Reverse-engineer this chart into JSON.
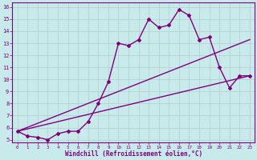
{
  "xlabel": "Windchill (Refroidissement éolien,°C)",
  "bg_color": "#c8eaea",
  "grid_color": "#b0cece",
  "line_color": "#800080",
  "xlim": [
    -0.5,
    23.5
  ],
  "ylim": [
    4.8,
    16.4
  ],
  "xticks": [
    0,
    1,
    2,
    3,
    4,
    5,
    6,
    7,
    8,
    9,
    10,
    11,
    12,
    13,
    14,
    15,
    16,
    17,
    18,
    19,
    20,
    21,
    22,
    23
  ],
  "yticks": [
    5,
    6,
    7,
    8,
    9,
    10,
    11,
    12,
    13,
    14,
    15,
    16
  ],
  "line1_x": [
    0,
    1,
    2,
    3,
    4,
    5,
    6,
    7,
    8,
    9,
    10,
    11,
    12,
    13,
    14,
    15,
    16,
    17,
    18,
    19,
    20,
    21,
    22,
    23
  ],
  "line1_y": [
    5.7,
    5.3,
    5.2,
    5.0,
    5.5,
    5.7,
    5.7,
    6.5,
    8.0,
    9.8,
    13.0,
    12.8,
    13.3,
    15.0,
    14.3,
    14.5,
    15.8,
    15.3,
    13.3,
    13.5,
    11.0,
    9.3,
    10.3,
    10.3
  ],
  "line2_x": [
    0,
    23
  ],
  "line2_y": [
    5.7,
    13.3
  ],
  "line3_x": [
    0,
    23
  ],
  "line3_y": [
    5.7,
    10.3
  ],
  "marker": "D",
  "markersize": 2,
  "linewidth": 1.0
}
